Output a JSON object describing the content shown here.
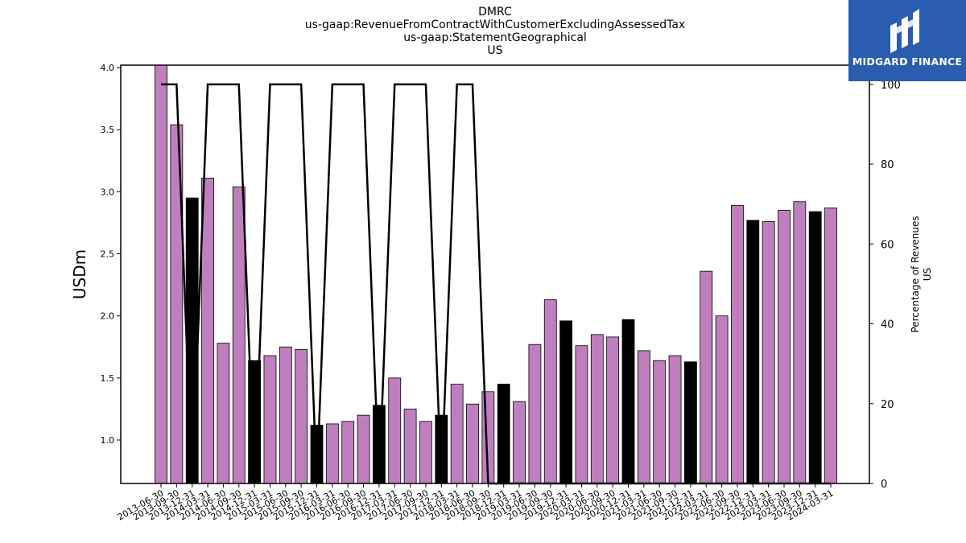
{
  "titles": {
    "line1": "DMRC",
    "line2": "us-gaap:RevenueFromContractWithCustomerExcludingAssessedTax",
    "line3": "us-gaap:StatementGeographical",
    "line4": "US"
  },
  "logo": {
    "text": "MIDGARD FINANCE",
    "bg": "#2a5cb0"
  },
  "chart_data": {
    "type": "bar",
    "ylabel": "USDm",
    "y2label_line1": "Percentage of Revenues",
    "y2label_line2": "US",
    "ylim": [
      0.65,
      4.02
    ],
    "y2lim": [
      0,
      104.8
    ],
    "yticks": [
      "1.0",
      "1.5",
      "2.0",
      "2.5",
      "3.0",
      "3.5",
      "4.0"
    ],
    "y2ticks": [
      "0",
      "20",
      "40",
      "60",
      "80",
      "100"
    ],
    "colors": {
      "quarter": "#bf7fbf",
      "annual": "#000000",
      "line": "#000000"
    },
    "categories": [
      "2013-06-30",
      "2013-09-30",
      "2013-12-31",
      "2014-03-31",
      "2014-06-30",
      "2014-09-30",
      "2014-12-31",
      "2015-03-31",
      "2015-06-30",
      "2015-09-30",
      "2015-12-31",
      "2016-03-31",
      "2016-06-30",
      "2016-09-30",
      "2016-12-31",
      "2017-03-31",
      "2017-06-30",
      "2017-09-30",
      "2017-12-31",
      "2018-03-31",
      "2018-06-30",
      "2018-09-30",
      "2018-12-31",
      "2019-03-31",
      "2019-06-30",
      "2019-09-30",
      "2019-12-31",
      "2020-03-31",
      "2020-06-30",
      "2020-09-30",
      "2020-12-31",
      "2021-03-31",
      "2021-06-30",
      "2021-09-30",
      "2021-12-31",
      "2022-03-31",
      "2022-06-30",
      "2022-09-30",
      "2022-12-31",
      "2023-03-31",
      "2023-06-30",
      "2023-09-30",
      "2023-12-31",
      "2024-03-31"
    ],
    "values": [
      4.02,
      3.54,
      2.95,
      3.11,
      1.78,
      3.04,
      1.64,
      1.68,
      1.75,
      1.73,
      1.12,
      1.13,
      1.15,
      1.2,
      1.28,
      1.5,
      1.25,
      1.15,
      1.2,
      1.45,
      1.29,
      1.39,
      1.45,
      1.31,
      1.77,
      2.13,
      1.96,
      1.76,
      1.85,
      1.83,
      1.97,
      1.72,
      1.64,
      1.68,
      1.63,
      2.36,
      2.0,
      2.89,
      2.77,
      2.76,
      2.85,
      2.92,
      2.84,
      2.87
    ],
    "annual": [
      false,
      false,
      true,
      false,
      false,
      false,
      true,
      false,
      false,
      false,
      true,
      false,
      false,
      false,
      true,
      false,
      false,
      false,
      true,
      false,
      false,
      false,
      true,
      false,
      false,
      false,
      true,
      false,
      false,
      false,
      true,
      false,
      false,
      false,
      true,
      false,
      false,
      false,
      true,
      false,
      false,
      false,
      true,
      false
    ],
    "series": [
      {
        "values": [
          100,
          100,
          0,
          100,
          100,
          100,
          0,
          100,
          100,
          100,
          0,
          100,
          100,
          100,
          0,
          100,
          100,
          100,
          0,
          100,
          100,
          0,
          0,
          0,
          0,
          0,
          0,
          0,
          0,
          0,
          0,
          0,
          0,
          0,
          0,
          0,
          0,
          0,
          0,
          0,
          0,
          0,
          0,
          0
        ]
      }
    ],
    "legend": "none",
    "grid": false
  }
}
